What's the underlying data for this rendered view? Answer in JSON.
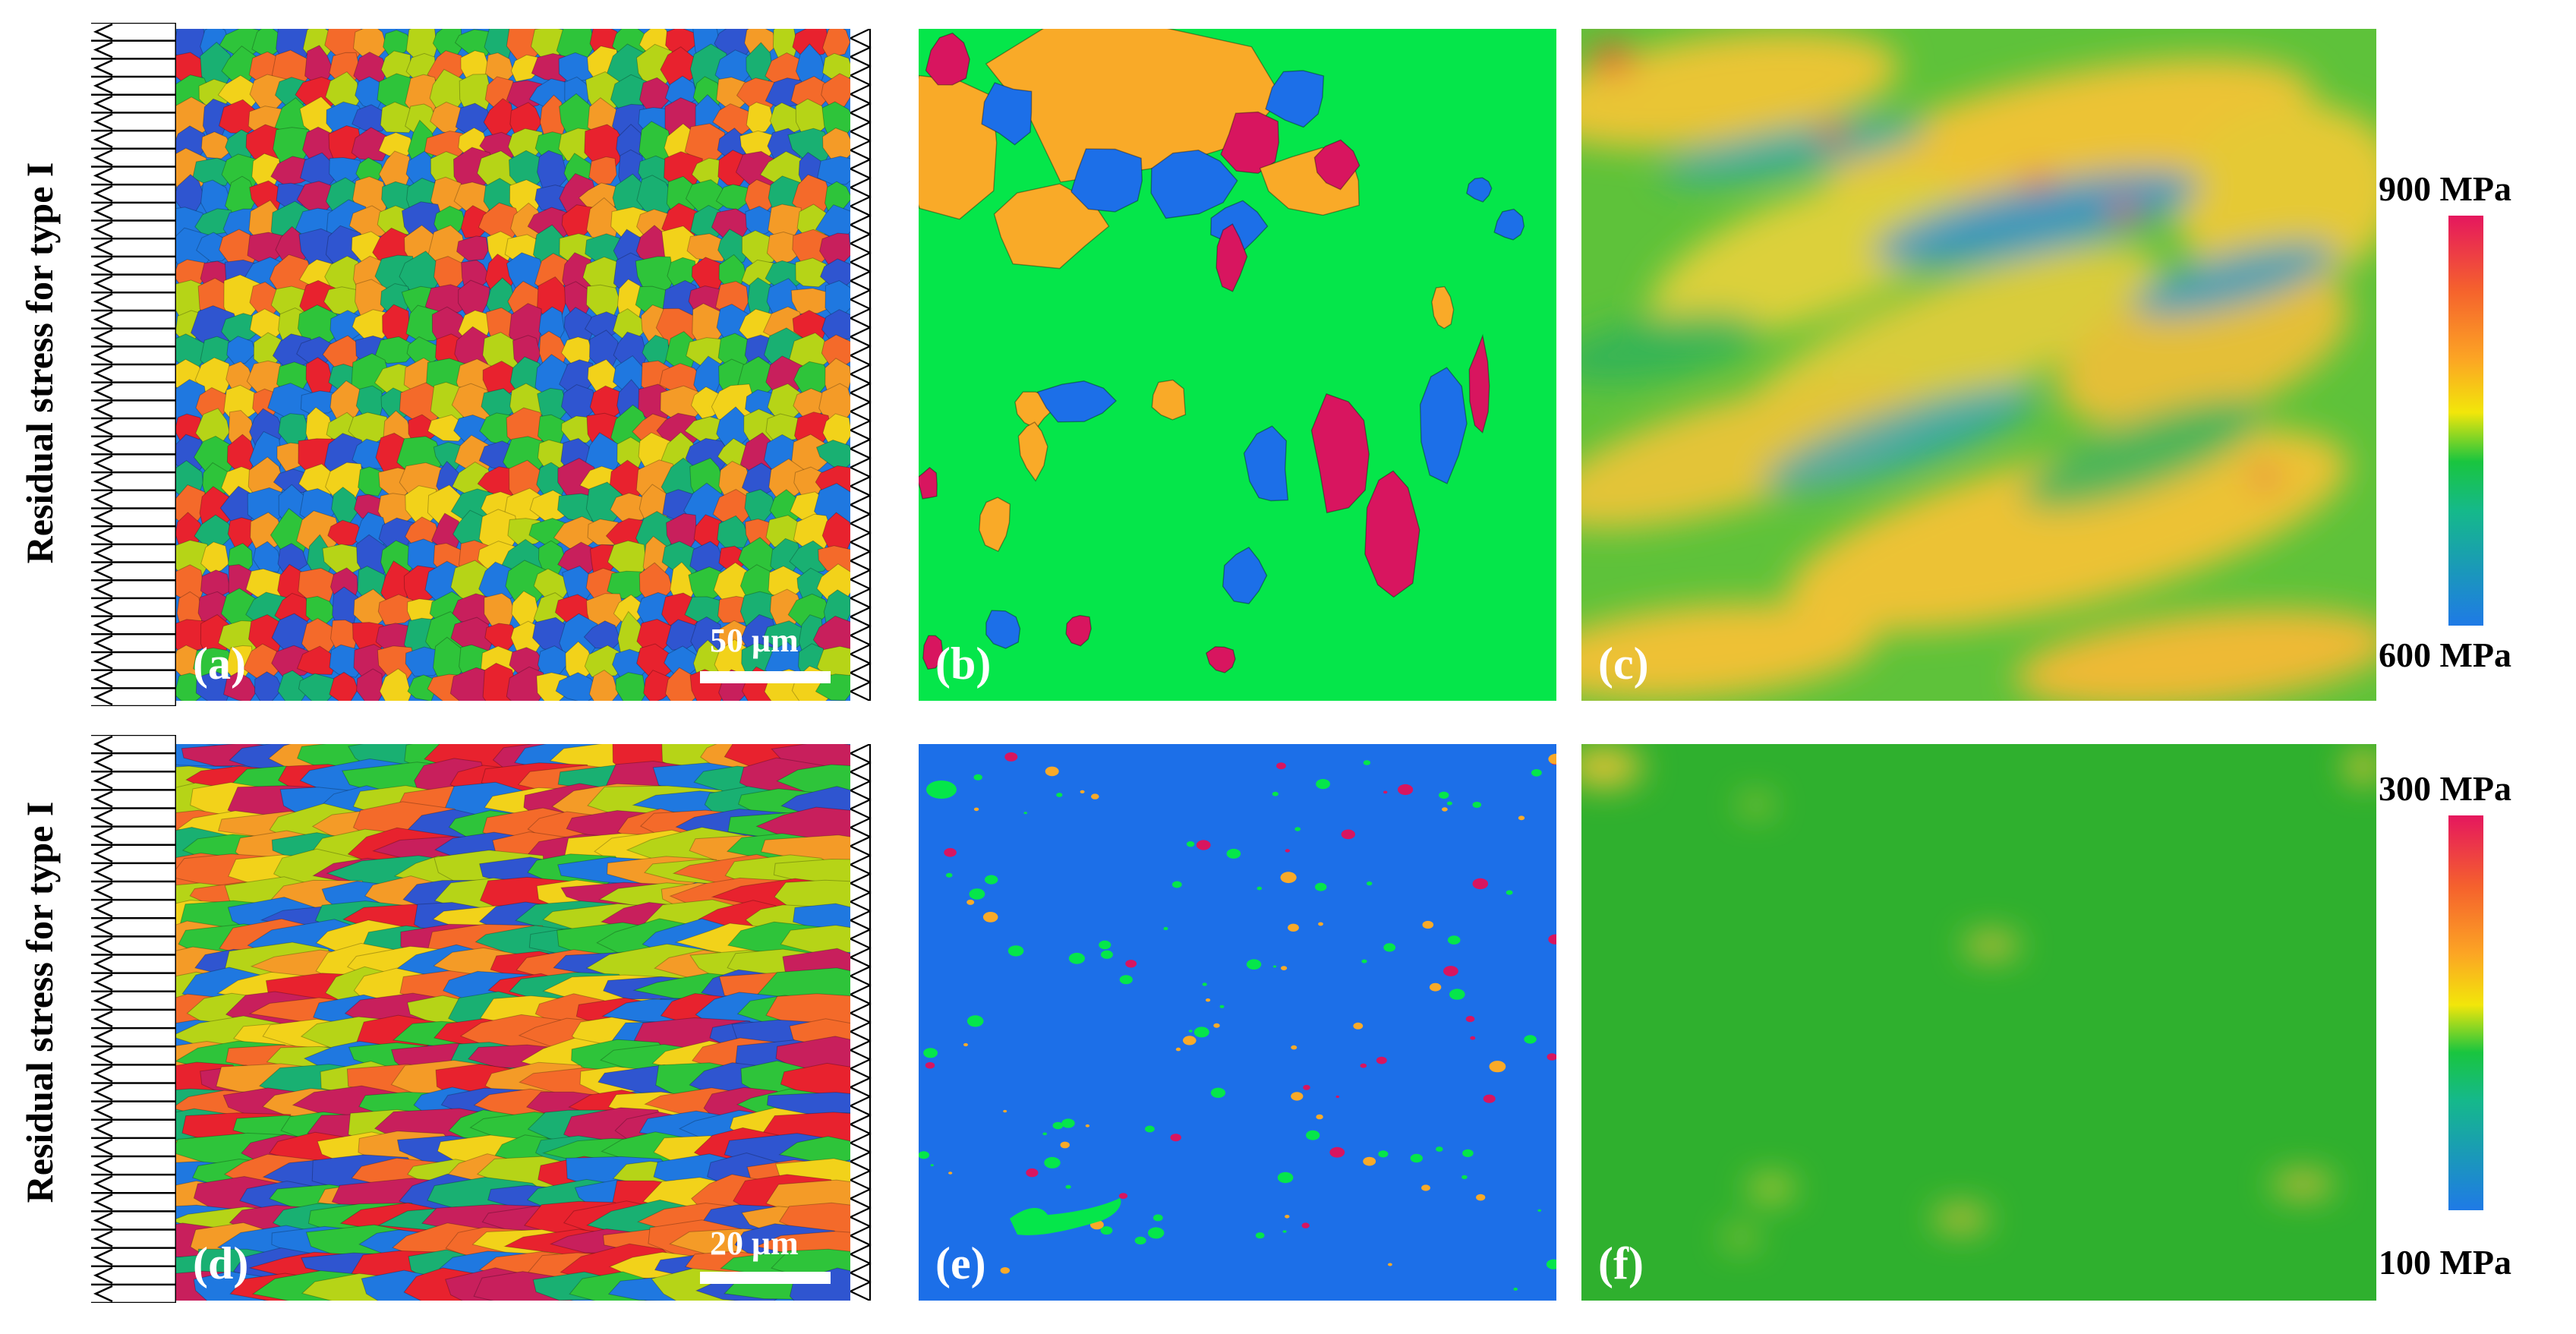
{
  "rows": [
    {
      "ylabel": "Residual stress for type I",
      "panels": [
        {
          "tag": "(a)",
          "kind": "grain-map",
          "scale": "50 μm"
        },
        {
          "tag": "(b)",
          "kind": "phase-map"
        },
        {
          "tag": "(c)",
          "kind": "stress-field"
        }
      ],
      "colorbar": {
        "max": "900 MPa",
        "min": "600 MPa"
      }
    },
    {
      "ylabel": "Residual stress for type I",
      "panels": [
        {
          "tag": "(d)",
          "kind": "grain-map",
          "scale": "20 μm"
        },
        {
          "tag": "(e)",
          "kind": "phase-map"
        },
        {
          "tag": "(f)",
          "kind": "stress-field"
        }
      ],
      "colorbar": {
        "max": "300 MPa",
        "min": "100 MPa"
      }
    }
  ],
  "colors": {
    "grains": [
      "#e8222e",
      "#f49b27",
      "#f2d21a",
      "#b6d417",
      "#2ec43a",
      "#19b072",
      "#1f78e0",
      "#2f55d0",
      "#c81f5c",
      "#f46a2a"
    ],
    "phase_green": "#05e64a",
    "phase_orange": "#f9aa28",
    "phase_blue": "#1c6fe8",
    "phase_magenta": "#d8155f",
    "field_green": "#2fb02e"
  }
}
